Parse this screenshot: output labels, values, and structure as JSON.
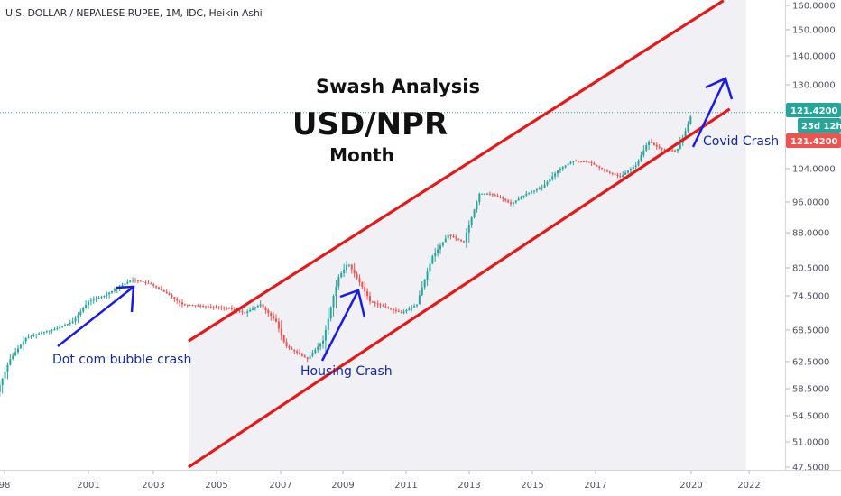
{
  "symbol_line": "U.S. DOLLAR / NEPALESE RUPEE, 1M, IDC, Heikin Ashi",
  "colors": {
    "up": "#26a69a",
    "down": "#ef5350",
    "channel": "#e31a1a",
    "arrow": "#1a1ae6",
    "label_text": "#1428a0",
    "price_line": "#26a69a",
    "tag_green": "#26a69a",
    "tag_red": "#ef5350",
    "shade": "#f0f0f5"
  },
  "annotations": {
    "title1": "Swash Analysis",
    "title2": "USD/NPR",
    "title3": "Month",
    "dotcom": "Dot com bubble crash",
    "housing": "Housing Crash",
    "covid": "Covid Crash"
  },
  "price_tags": {
    "last": "121.4200",
    "countdown": "25d 12h",
    "close": "121.4200"
  },
  "chart_data": {
    "type": "candlestick",
    "title": "USD/NPR",
    "subtitle": "Month",
    "y_ticks": [
      "160.0000",
      "150.0000",
      "140.0000",
      "130.0000",
      "104.0000",
      "96.0000",
      "88.0000",
      "80.5000",
      "74.5000",
      "68.5000",
      "62.5000",
      "58.5000",
      "54.5000",
      "51.0000",
      "47.5000"
    ],
    "x_ticks": [
      "98",
      "2001",
      "2003",
      "2005",
      "2007",
      "2009",
      "2011",
      "2013",
      "2015",
      "2017",
      "2020",
      "2022"
    ],
    "last_price": 121.42,
    "channel": {
      "upper": [
        [
          2004.2,
          66.4
        ],
        [
          2021.3,
          162
        ]
      ],
      "lower": [
        [
          2004.2,
          47.5
        ],
        [
          2021.5,
          122.5
        ]
      ]
    },
    "close_path": [
      [
        1998.0,
        57.0
      ],
      [
        1998.5,
        63.0
      ],
      [
        1999.0,
        67.0
      ],
      [
        1999.5,
        68.0
      ],
      [
        2000.0,
        68.8
      ],
      [
        2000.5,
        70.0
      ],
      [
        2001.0,
        73.5
      ],
      [
        2001.5,
        74.5
      ],
      [
        2002.0,
        76.5
      ],
      [
        2002.4,
        78.0
      ],
      [
        2003.0,
        77.0
      ],
      [
        2003.5,
        75.0
      ],
      [
        2004.0,
        73.0
      ],
      [
        2004.5,
        72.8
      ],
      [
        2005.0,
        72.5
      ],
      [
        2005.5,
        72.3
      ],
      [
        2006.0,
        71.5
      ],
      [
        2006.5,
        73.0
      ],
      [
        2007.0,
        70.0
      ],
      [
        2007.3,
        65.5
      ],
      [
        2008.0,
        63.0
      ],
      [
        2008.5,
        66.5
      ],
      [
        2009.0,
        78.5
      ],
      [
        2009.3,
        81.5
      ],
      [
        2009.7,
        77.0
      ],
      [
        2010.0,
        73.5
      ],
      [
        2010.5,
        72.5
      ],
      [
        2011.0,
        71.5
      ],
      [
        2011.5,
        73.0
      ],
      [
        2012.0,
        83.0
      ],
      [
        2012.5,
        87.5
      ],
      [
        2013.0,
        86.0
      ],
      [
        2013.5,
        98.0
      ],
      [
        2013.8,
        98.0
      ],
      [
        2014.2,
        97.0
      ],
      [
        2014.5,
        95.5
      ],
      [
        2015.0,
        98.0
      ],
      [
        2015.5,
        99.5
      ],
      [
        2016.0,
        103.5
      ],
      [
        2016.5,
        106.5
      ],
      [
        2017.0,
        106.0
      ],
      [
        2017.5,
        103.5
      ],
      [
        2018.0,
        102.0
      ],
      [
        2018.5,
        105.0
      ],
      [
        2018.9,
        112.5
      ],
      [
        2019.3,
        110.0
      ],
      [
        2019.8,
        109.5
      ],
      [
        2020.0,
        113.5
      ],
      [
        2020.3,
        121.4
      ]
    ]
  }
}
